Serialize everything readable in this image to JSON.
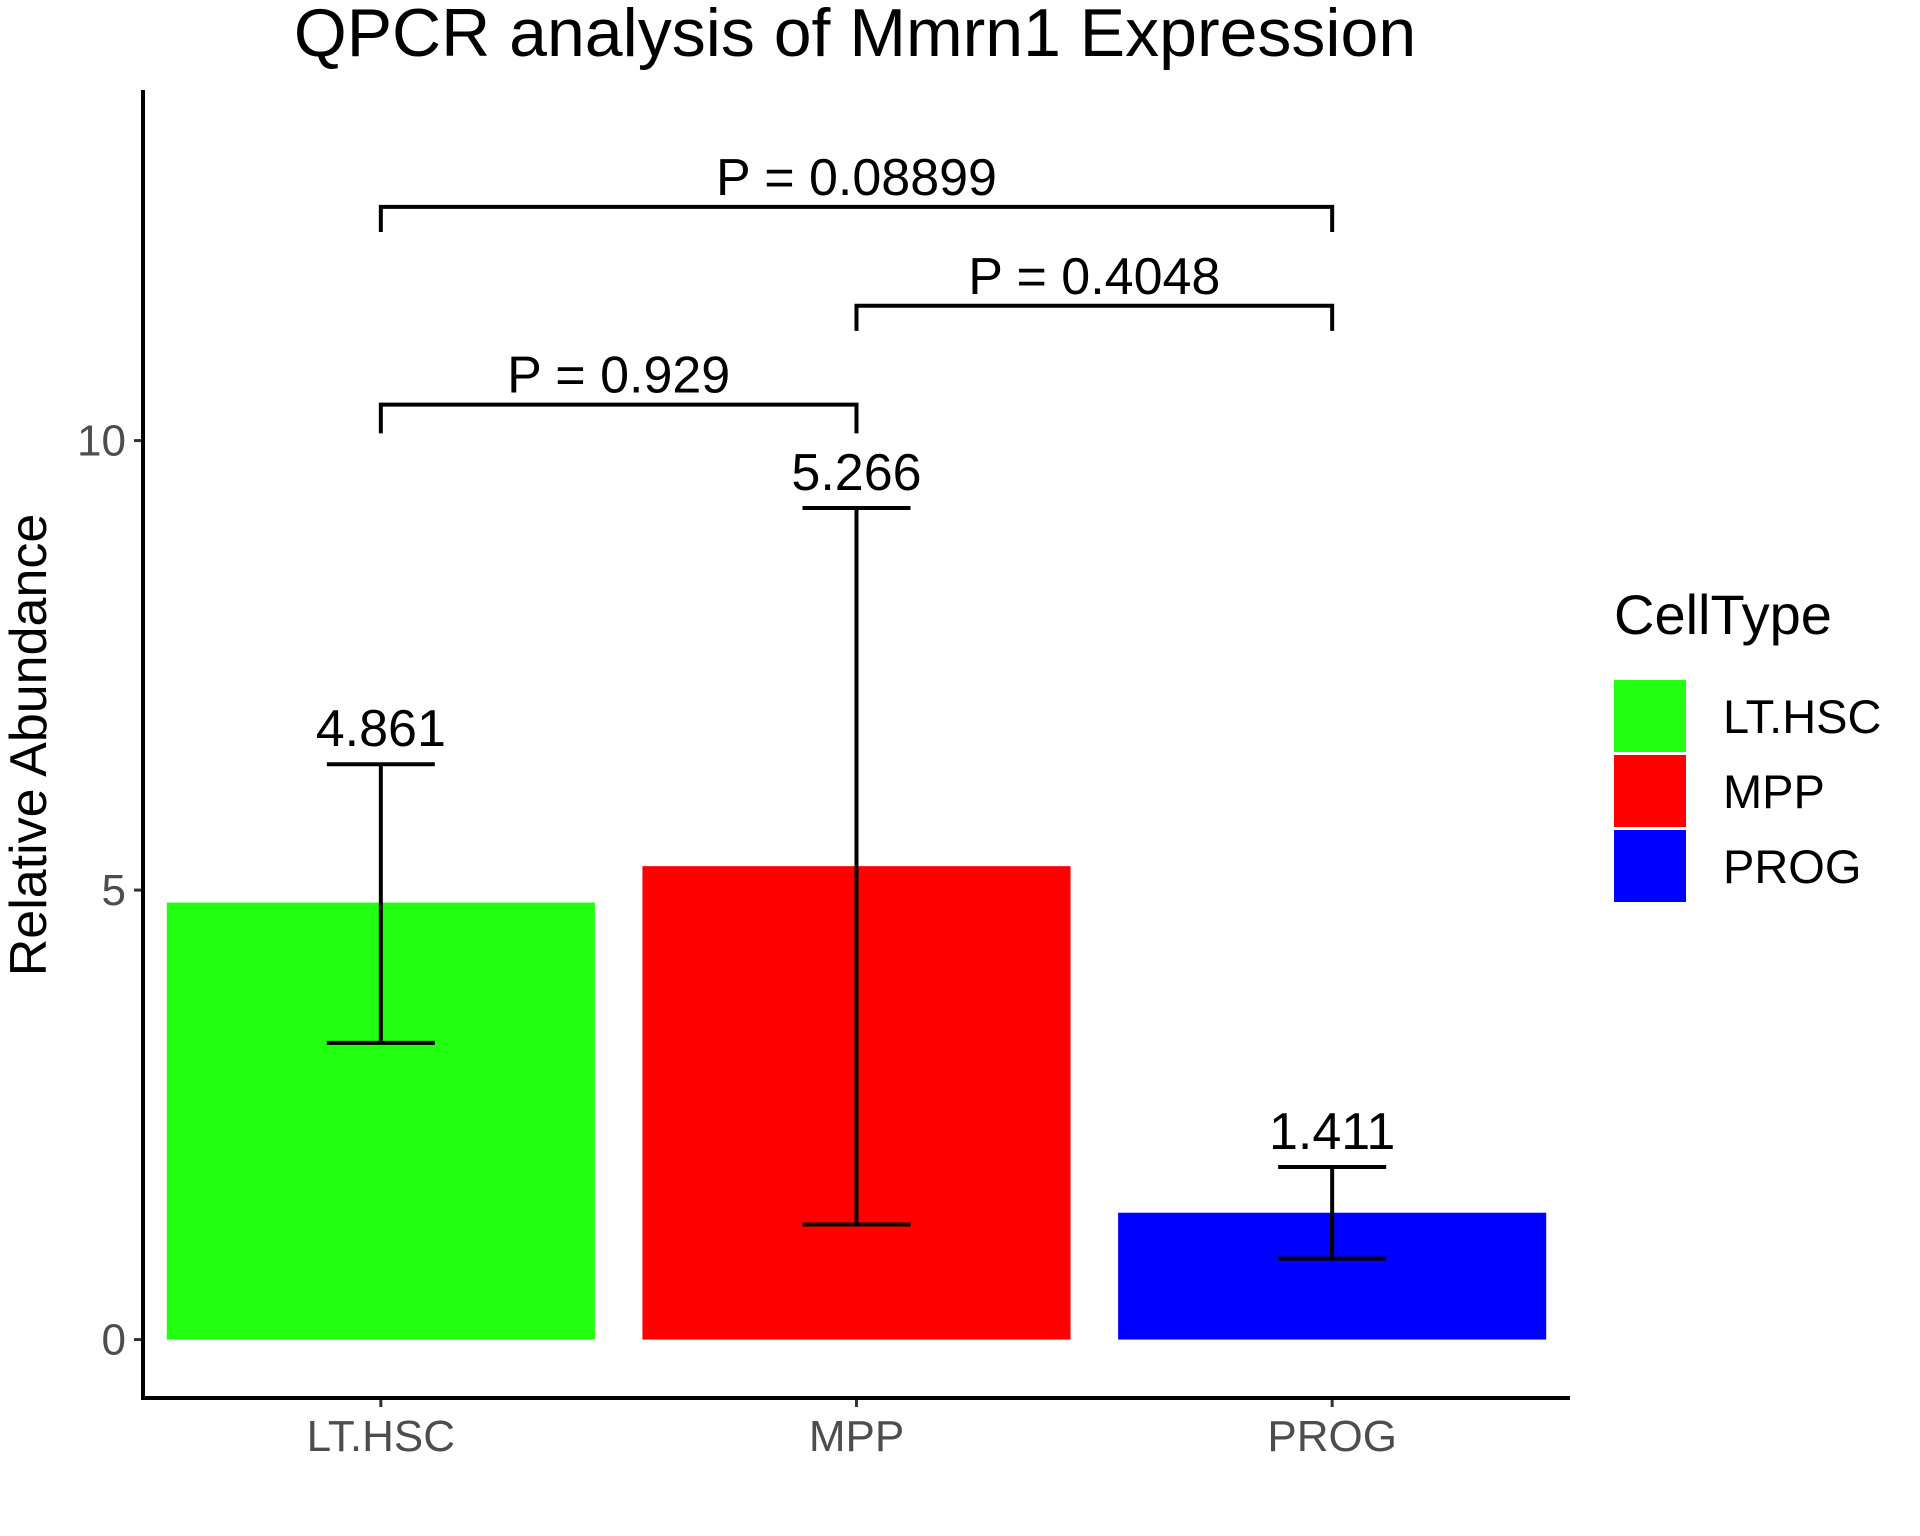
{
  "chart_data": {
    "type": "bar",
    "title": "QPCR analysis of Mmrn1 Expression",
    "xlabel": "",
    "ylabel": "Relative Abundance",
    "categories": [
      "LT.HSC",
      "MPP",
      "PROG"
    ],
    "values": [
      4.861,
      5.266,
      1.411
    ],
    "value_labels": [
      "4.861",
      "5.266",
      "1.411"
    ],
    "error_bars": [
      {
        "low": 3.3,
        "high": 6.4
      },
      {
        "low": 1.28,
        "high": 9.25
      },
      {
        "low": 0.9,
        "high": 1.92
      }
    ],
    "colors": [
      "#22ff11",
      "#ff0000",
      "#0000ff"
    ],
    "ylim": [
      -0.65,
      13.9
    ],
    "yticks": [
      0,
      5,
      10
    ],
    "ytick_labels": [
      "0",
      "5",
      "10"
    ],
    "grid": false,
    "legend": {
      "title": "CellType",
      "position": "right",
      "entries": [
        "LT.HSC",
        "MPP",
        "PROG"
      ]
    },
    "comparisons": [
      {
        "from": 0,
        "to": 1,
        "label": "P = 0.929",
        "y": 10.4,
        "drop": 0.32
      },
      {
        "from": 1,
        "to": 2,
        "label": "P = 0.4048",
        "y": 11.5,
        "drop": 0.28
      },
      {
        "from": 0,
        "to": 2,
        "label": "P = 0.08899",
        "y": 12.6,
        "drop": 0.28
      }
    ]
  }
}
